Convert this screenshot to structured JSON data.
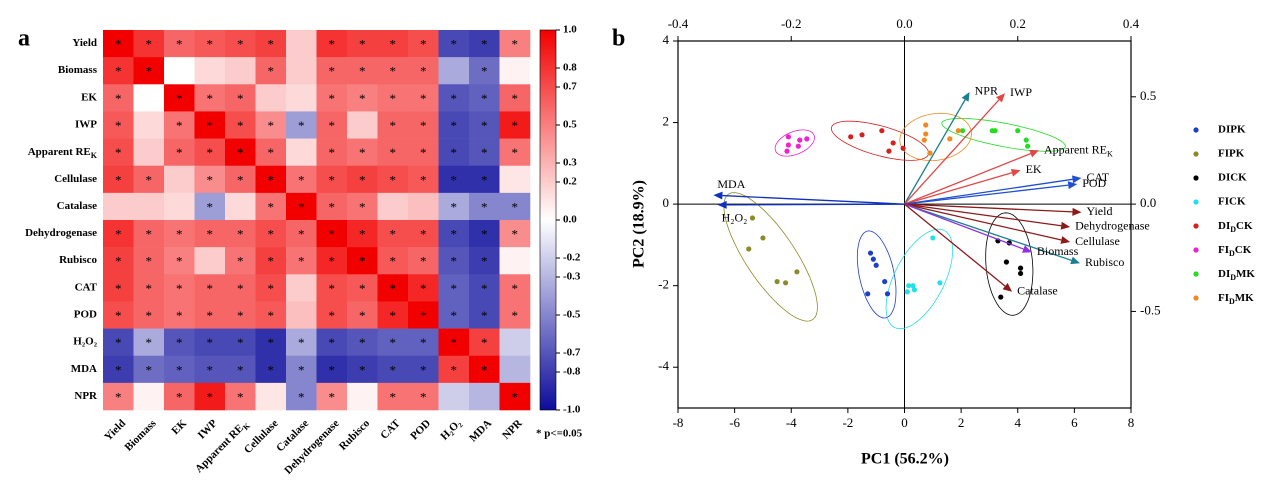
{
  "chart_data": [
    {
      "type": "heatmap",
      "panel": "a",
      "variables": [
        "Yield",
        "Biomass",
        "EK",
        "IWP",
        {
          "text": "Apparent RE",
          "sub": "K"
        },
        "Cellulase",
        "Catalase",
        "Dehydrogenase",
        "Rubisco",
        "CAT",
        "POD",
        "H₂O₂",
        "MDA",
        "NPR"
      ],
      "values": [
        [
          1,
          0.8,
          0.6,
          0.65,
          0.7,
          0.75,
          0.2,
          0.8,
          0.75,
          0.75,
          0.7,
          -0.75,
          -0.8,
          0.5
        ],
        [
          0.8,
          1,
          0,
          0.15,
          0.2,
          0.6,
          0.2,
          0.6,
          0.6,
          0.6,
          0.6,
          -0.35,
          -0.6,
          0.05
        ],
        [
          0.6,
          0,
          1,
          0.55,
          0.6,
          0.2,
          0.15,
          0.55,
          0.5,
          0.55,
          0.55,
          -0.7,
          -0.65,
          0.6
        ],
        [
          0.65,
          0.15,
          0.55,
          1,
          0.7,
          0.45,
          -0.4,
          0.6,
          0.2,
          0.6,
          0.6,
          -0.75,
          -0.7,
          0.9
        ],
        [
          0.7,
          0.2,
          0.6,
          0.7,
          1,
          0.6,
          0.15,
          0.6,
          0.55,
          0.6,
          0.6,
          -0.75,
          -0.7,
          0.55
        ],
        [
          0.75,
          0.6,
          0.2,
          0.45,
          0.6,
          1,
          0.55,
          0.7,
          0.75,
          0.7,
          0.65,
          -0.85,
          -0.85,
          0.1
        ],
        [
          0.2,
          0.2,
          0.15,
          -0.4,
          0.15,
          0.55,
          1,
          0.6,
          0.55,
          0.2,
          0.25,
          -0.35,
          -0.5,
          -0.5
        ],
        [
          0.8,
          0.6,
          0.55,
          0.6,
          0.6,
          0.7,
          0.6,
          1,
          0.85,
          0.7,
          0.7,
          -0.75,
          -0.85,
          0.45
        ],
        [
          0.75,
          0.6,
          0.5,
          0.2,
          0.55,
          0.75,
          0.55,
          0.85,
          1,
          0.65,
          0.6,
          -0.7,
          -0.8,
          0.05
        ],
        [
          0.75,
          0.6,
          0.55,
          0.6,
          0.6,
          0.7,
          0.2,
          0.7,
          0.65,
          1,
          0.85,
          -0.65,
          -0.75,
          0.55
        ],
        [
          0.7,
          0.6,
          0.55,
          0.6,
          0.6,
          0.65,
          0.25,
          0.7,
          0.6,
          0.85,
          1,
          -0.65,
          -0.75,
          0.55
        ],
        [
          -0.75,
          -0.35,
          -0.7,
          -0.75,
          -0.75,
          -0.85,
          -0.35,
          -0.75,
          -0.7,
          -0.65,
          -0.65,
          1,
          0.75,
          -0.2
        ],
        [
          -0.8,
          -0.6,
          -0.65,
          -0.7,
          -0.7,
          -0.85,
          -0.5,
          -0.85,
          -0.8,
          -0.75,
          -0.75,
          0.75,
          1,
          -0.3
        ],
        [
          0.5,
          0.05,
          0.6,
          0.9,
          0.55,
          0.1,
          -0.5,
          0.45,
          0.05,
          0.55,
          0.55,
          -0.2,
          -0.3,
          1
        ]
      ],
      "labels": [
        [
          "*",
          "*",
          "*",
          "*",
          "*",
          "*",
          null,
          "*",
          "*",
          "*",
          "*",
          "*",
          "*",
          "*"
        ],
        [
          "*",
          "*",
          null,
          null,
          null,
          "*",
          null,
          "*",
          "*",
          "*",
          "*",
          null,
          "*",
          null
        ],
        [
          "*",
          null,
          "*",
          "*",
          "*",
          null,
          null,
          "*",
          "*",
          "*",
          "*",
          "*",
          "*",
          "*"
        ],
        [
          "*",
          null,
          "*",
          "*",
          "*",
          "*",
          "*",
          "*",
          null,
          "*",
          "*",
          "*",
          "*",
          "*"
        ],
        [
          "*",
          null,
          "*",
          "*",
          "*",
          "*",
          null,
          "*",
          "*",
          "*",
          "*",
          "*",
          "*",
          "*"
        ],
        [
          "*",
          "*",
          null,
          "*",
          "*",
          "*",
          "*",
          "*",
          "*",
          "*",
          "*",
          "*",
          "*",
          null
        ],
        [
          null,
          null,
          null,
          "*",
          null,
          "*",
          "*",
          "*",
          "*",
          null,
          null,
          "*",
          "*",
          "*"
        ],
        [
          "*",
          "*",
          "*",
          "*",
          "*",
          "*",
          "*",
          "*",
          "*",
          "*",
          "*",
          "*",
          "*",
          "*"
        ],
        [
          "*",
          "*",
          "*",
          null,
          "*",
          "*",
          "*",
          "*",
          "*",
          "*",
          "*",
          "*",
          "*",
          null
        ],
        [
          "*",
          "*",
          "*",
          "*",
          "*",
          "*",
          null,
          "*",
          "*",
          "*",
          "*",
          "*",
          "*",
          "*"
        ],
        [
          "*",
          "*",
          "*",
          "*",
          "*",
          "*",
          null,
          "*",
          "*",
          "*",
          "*",
          "*",
          "*",
          "*"
        ],
        [
          "*",
          "*",
          "*",
          "*",
          "*",
          "*",
          "*",
          "*",
          "*",
          "*",
          "*",
          "*",
          "*",
          null
        ],
        [
          "*",
          "*",
          "*",
          "*",
          "*",
          "*",
          "*",
          "*",
          "*",
          "*",
          "*",
          "*",
          "*",
          null
        ],
        [
          "*",
          null,
          "*",
          "*",
          "*",
          null,
          "*",
          "*",
          null,
          "*",
          "*",
          null,
          null,
          "*"
        ]
      ],
      "colormap": [
        "#0c0c9c",
        "#ffffff",
        "#f20000"
      ],
      "vlim": [
        -1,
        1
      ],
      "colorbar_ticks": [
        {
          "value": 1,
          "label": "1.0"
        },
        0.8,
        0.7,
        0.5,
        0.3,
        0.2,
        {
          "value": 0,
          "label": "0.0"
        },
        -0.2,
        -0.3,
        -0.5,
        -0.7,
        -0.8,
        {
          "value": -1,
          "label": "-1.0"
        }
      ],
      "note": "* p<=0.05"
    },
    {
      "type": "scatter",
      "panel": "b",
      "xlabel": "PC1 (56.2%)",
      "ylabel": "PC2 (18.9%)",
      "xlim": [
        -8,
        8
      ],
      "xticks": [
        -8,
        -6,
        -4,
        -2,
        0,
        2,
        4,
        6,
        8
      ],
      "ylim": [
        -5,
        4
      ],
      "yticks": [
        -4,
        -2,
        0,
        2,
        4
      ],
      "x2lim": [
        -0.4,
        0.4
      ],
      "x2ticks": [
        -0.4,
        -0.2,
        {
          "value": 0,
          "label": "0.0"
        },
        0.2,
        0.4
      ],
      "y2lim": [
        -0.95,
        0.76
      ],
      "y2ticks": [
        0.5,
        {
          "value": 0,
          "label": "0.0"
        },
        -0.5
      ],
      "ellipses": true,
      "series": [
        {
          "name": "DIPK",
          "color": "#1f3fc8",
          "x": [
            -1.2,
            -1.1,
            -0.7,
            -0.6,
            -1.3,
            -1.0
          ],
          "y": [
            -1.2,
            -1.35,
            -1.9,
            -2.2,
            -2.2,
            -1.5
          ]
        },
        {
          "name": "FIPK",
          "color": "#8b8b2a",
          "x": [
            -5.37,
            -5.0,
            -5.5,
            -4.5,
            -4.2,
            -3.8
          ],
          "y": [
            -0.34,
            -0.83,
            -1.1,
            -1.9,
            -1.93,
            -1.66
          ]
        },
        {
          "name": "DICK",
          "color": "#000000",
          "x": [
            3.3,
            3.7,
            3.6,
            4.1,
            4.1,
            3.4
          ],
          "y": [
            -0.9,
            -0.95,
            -1.42,
            -1.57,
            -1.7,
            -2.28
          ]
        },
        {
          "name": "FICK",
          "color": "#22e0e6",
          "x": [
            1.0,
            0.15,
            0.3,
            0.35,
            0.1,
            1.25
          ],
          "y": [
            -0.83,
            -2.0,
            -2.0,
            -2.1,
            -2.15,
            -1.93
          ]
        },
        {
          "name": {
            "text": "DI",
            "sub": "D",
            "rest": "CK"
          },
          "color": "#d62020",
          "x": [
            -1.9,
            -1.5,
            -0.8,
            -0.4,
            -0.55,
            -0.05
          ],
          "y": [
            1.65,
            1.7,
            1.8,
            1.5,
            1.3,
            1.37
          ]
        },
        {
          "name": {
            "text": "FI",
            "sub": "D",
            "rest": "CK"
          },
          "color": "#f020d0",
          "x": [
            -4.1,
            -4.1,
            -3.75,
            -3.45,
            -3.7,
            -4.15
          ],
          "y": [
            1.65,
            1.45,
            1.42,
            1.6,
            1.57,
            1.3
          ]
        },
        {
          "name": {
            "text": "DI",
            "sub": "D",
            "rest": "MK"
          },
          "color": "#22dd22",
          "x": [
            2.05,
            3.1,
            3.2,
            4.0,
            4.3,
            4.35
          ],
          "y": [
            1.8,
            1.8,
            1.8,
            1.8,
            1.57,
            1.42
          ]
        },
        {
          "name": {
            "text": "FI",
            "sub": "D",
            "rest": "MK"
          },
          "color": "#f08a20",
          "x": [
            0.75,
            0.75,
            0.9,
            1.6,
            0.7,
            1.9
          ],
          "y": [
            1.94,
            1.72,
            1.25,
            1.6,
            1.57,
            1.8
          ]
        }
      ],
      "loadings": [
        {
          "name": "NPR",
          "color": "#1a8090",
          "x": 2.3,
          "y": 2.75
        },
        {
          "name": "IWP",
          "color": "#e04848",
          "x": 3.55,
          "y": 2.72
        },
        {
          "name": {
            "text": "Apparent RE",
            "sub": "K"
          },
          "color": "#e04848",
          "x": 4.75,
          "y": 1.32
        },
        {
          "name": "EK",
          "color": "#e04848",
          "x": 4.1,
          "y": 0.83
        },
        {
          "name": "CAT",
          "color": "#2050d0",
          "x": 6.25,
          "y": 0.64
        },
        {
          "name": "POD",
          "color": "#2050d0",
          "x": 6.1,
          "y": 0.49
        },
        {
          "name": "Yield",
          "color": "#8b1a1a",
          "x": 6.25,
          "y": -0.2
        },
        {
          "name": "Dehydrogenase",
          "color": "#8b1a1a",
          "x": 5.85,
          "y": -0.56
        },
        {
          "name": "Cellulase",
          "color": "#8b1a1a",
          "x": 5.85,
          "y": -0.93
        },
        {
          "name": "Rubisco",
          "color": "#1a8090",
          "x": 6.2,
          "y": -1.45
        },
        {
          "name": "Biomass",
          "color": "#9030e0",
          "x": 4.5,
          "y": -1.18
        },
        {
          "name": "Catalase",
          "color": "#8b1a1a",
          "x": 3.8,
          "y": -2.15
        },
        {
          "name": "MDA",
          "color": "#1030c0",
          "x": -6.75,
          "y": 0.22
        },
        {
          "name": "H₂O₂",
          "color": "#1030c0",
          "x": -6.6,
          "y": -0.02
        }
      ]
    }
  ]
}
